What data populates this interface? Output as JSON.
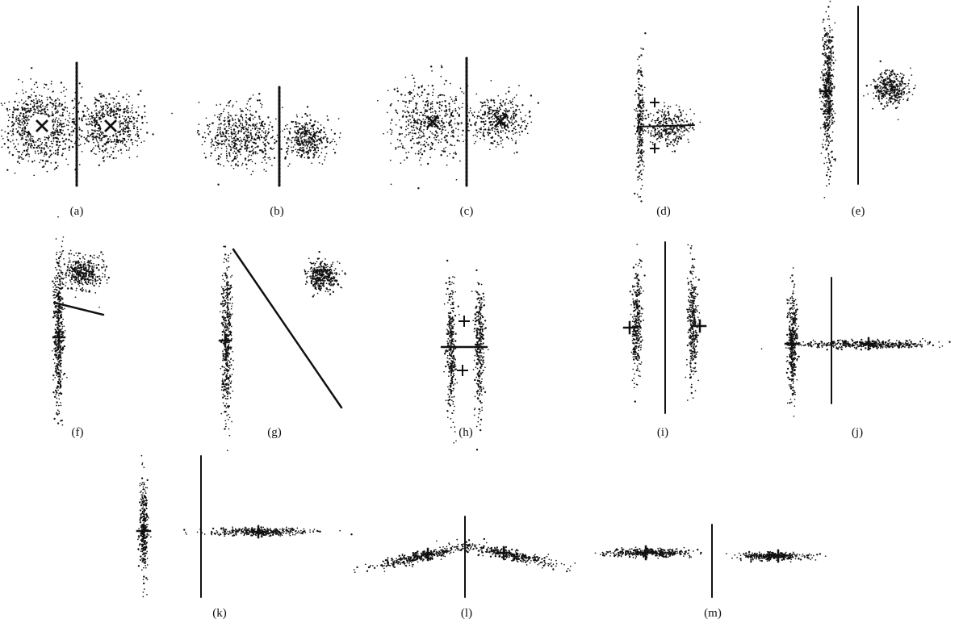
{
  "figure": {
    "panels": [
      {
        "id": "a",
        "label": "(a)",
        "clusters": [
          {
            "shape": "round",
            "spread": "wide",
            "spread_x": 0.45,
            "spread_y": 0.45,
            "density": "medium",
            "hollow_center": true
          },
          {
            "shape": "round",
            "spread": "wide",
            "spread_x": 0.35,
            "spread_y": 0.35,
            "density": "medium",
            "hollow_center": true
          }
        ],
        "separator": "vertical, dashed-dotted",
        "markers": [
          "x",
          "x"
        ]
      },
      {
        "id": "b",
        "label": "(b)",
        "clusters": [
          {
            "shape": "round",
            "spread": "wide",
            "spread_x": 0.45,
            "spread_y": 0.45,
            "density": "high"
          },
          {
            "shape": "round",
            "spread": "medium",
            "spread_x": 0.3,
            "spread_y": 0.3,
            "density": "high"
          }
        ],
        "separator": "vertical, dashed-dotted",
        "markers": [
          "x",
          "x"
        ]
      },
      {
        "id": "c",
        "label": "(c)",
        "clusters": [
          {
            "shape": "round",
            "spread": "wide",
            "spread_x": 0.45,
            "spread_y": 0.45,
            "density": "low"
          },
          {
            "shape": "round",
            "spread": "wide",
            "spread_x": 0.35,
            "spread_y": 0.35,
            "density": "low"
          }
        ],
        "separator": "vertical, dashed-dotted",
        "markers": [
          "x",
          "x"
        ]
      },
      {
        "id": "d",
        "label": "(d)",
        "clusters": [
          {
            "shape": "elongated vertical",
            "spread_x": 0.05,
            "spread_y": 0.5,
            "density": "medium"
          },
          {
            "shape": "round",
            "spread_x": 0.35,
            "spread_y": 0.3,
            "density": "low"
          }
        ],
        "separator": "horizontal solid",
        "markers": [
          "+",
          "+"
        ]
      },
      {
        "id": "e",
        "label": "(e)",
        "clusters": [
          {
            "shape": "elongated vertical",
            "spread_x": 0.05,
            "spread_y": 0.5,
            "density": "high"
          },
          {
            "shape": "round",
            "spread_x": 0.3,
            "spread_y": 0.3,
            "density": "high"
          }
        ],
        "separator": "vertical solid",
        "markers": [
          "+"
        ]
      },
      {
        "id": "f",
        "label": "(f)",
        "clusters": [
          {
            "shape": "elongated vertical",
            "spread_x": 0.05,
            "spread_y": 0.6,
            "density": "medium"
          },
          {
            "shape": "round",
            "spread_x": 0.3,
            "spread_y": 0.3,
            "density": "high"
          }
        ],
        "separator": "short oblique",
        "markers": [
          "+",
          "x"
        ]
      },
      {
        "id": "g",
        "label": "(g)",
        "clusters": [
          {
            "shape": "elongated vertical",
            "spread_x": 0.05,
            "spread_y": 0.6,
            "density": "medium"
          },
          {
            "shape": "round",
            "spread_x": 0.3,
            "spread_y": 0.3,
            "density": "high"
          }
        ],
        "separator": "long diagonal",
        "markers": [
          "+",
          "x"
        ]
      },
      {
        "id": "h",
        "label": "(h)",
        "clusters": [
          {
            "shape": "elongated vertical",
            "spread_x": 0.05,
            "spread_y": 0.6,
            "density": "medium"
          },
          {
            "shape": "elongated vertical",
            "spread_x": 0.05,
            "spread_y": 0.6,
            "density": "medium"
          }
        ],
        "separator": "horizontal solid",
        "markers": [
          "+",
          "+"
        ]
      },
      {
        "id": "i",
        "label": "(i)",
        "clusters": [
          {
            "shape": "elongated vertical",
            "spread_x": 0.05,
            "spread_y": 0.55,
            "density": "medium"
          },
          {
            "shape": "elongated vertical",
            "spread_x": 0.05,
            "spread_y": 0.55,
            "density": "medium"
          }
        ],
        "separator": "vertical solid",
        "markers": [
          "+",
          "+"
        ]
      },
      {
        "id": "j",
        "label": "(j)",
        "clusters": [
          {
            "shape": "elongated vertical",
            "spread_x": 0.05,
            "spread_y": 0.55,
            "density": "medium"
          },
          {
            "shape": "elongated horizontal",
            "spread_x": 0.6,
            "spread_y": 0.05,
            "density": "medium"
          }
        ],
        "separator": "vertical solid",
        "markers": [
          "+",
          "+"
        ]
      },
      {
        "id": "k",
        "label": "(k)",
        "clusters": [
          {
            "shape": "elongated vertical",
            "spread_x": 0.05,
            "spread_y": 0.6,
            "density": "medium"
          },
          {
            "shape": "elongated horizontal",
            "spread_x": 0.6,
            "spread_y": 0.05,
            "density": "medium"
          }
        ],
        "separator": "vertical solid",
        "markers": [
          "+",
          "+"
        ]
      },
      {
        "id": "l",
        "label": "(l)",
        "clusters": [
          {
            "shape": "elongated diagonal",
            "spread_x": 0.6,
            "spread_y": 0.05,
            "density": "medium"
          },
          {
            "shape": "elongated diagonal",
            "spread_x": 0.6,
            "spread_y": 0.05,
            "density": "medium"
          }
        ],
        "separator": "vertical solid",
        "markers": [
          "+",
          "+"
        ]
      },
      {
        "id": "m",
        "label": "(m)",
        "clusters": [
          {
            "shape": "elongated horizontal",
            "spread_x": 0.6,
            "spread_y": 0.05,
            "density": "medium"
          },
          {
            "shape": "elongated horizontal",
            "spread_x": 0.6,
            "spread_y": 0.05,
            "density": "medium"
          }
        ],
        "separator": "vertical solid",
        "markers": [
          "+",
          "+"
        ]
      }
    ],
    "colors": {
      "ink": "#111111",
      "background": "#ffffff"
    }
  }
}
